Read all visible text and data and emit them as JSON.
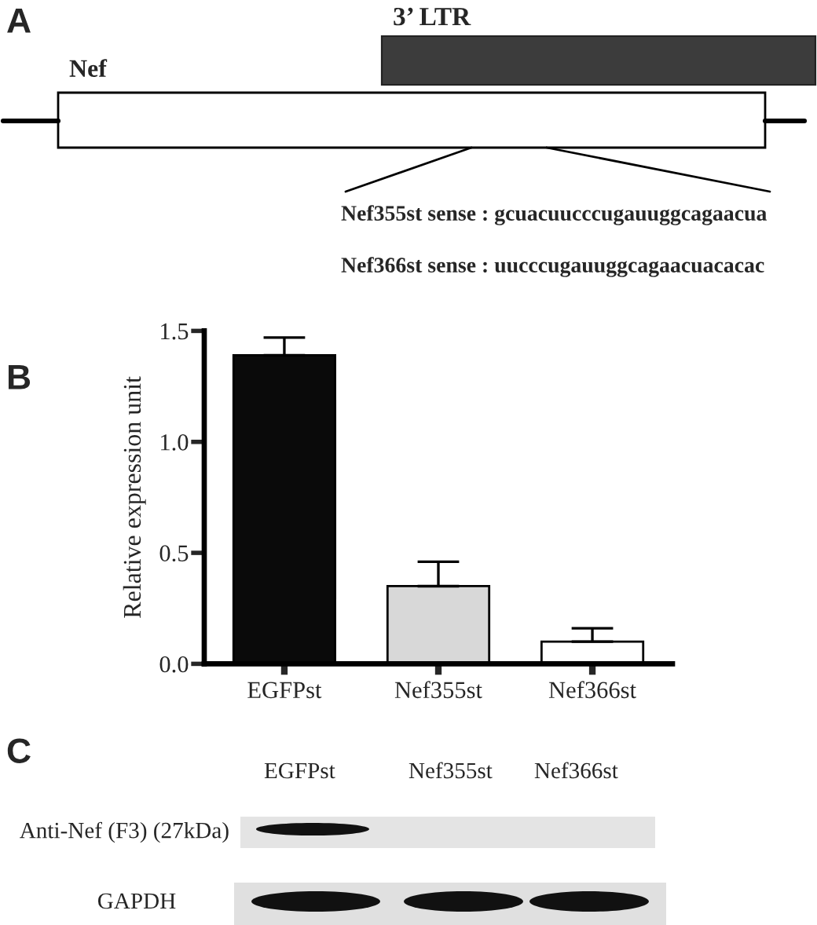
{
  "chart_data": {
    "type": "bar",
    "categories": [
      "EGFPst",
      "Nef355st",
      "Nef366st"
    ],
    "values": [
      1.39,
      0.35,
      0.1
    ],
    "colors": [
      "#0a0a0a",
      "#d8d8d8",
      "#ffffff"
    ],
    "errors": [
      [
        1.39,
        1.47
      ],
      [
        0.35,
        0.46
      ],
      [
        0.1,
        0.16
      ]
    ],
    "ylabel": "Relative expression unit",
    "ylim": [
      0,
      1.5
    ],
    "yticks": [
      {
        "value": 0,
        "label": "0.0"
      },
      {
        "value": 0.5,
        "label": "0.5"
      },
      {
        "value": 1,
        "label": "1.0"
      },
      {
        "value": 1.5,
        "label": "1.5"
      }
    ],
    "annotations": [
      "A",
      "3’ LTR",
      "Nef",
      "Nef355st sense : gcuacuucccugauuggcagaacua",
      "Nef366st sense : uucccugauuggcagaacuacacac",
      "B",
      "C",
      "EGFPst",
      "Nef355st",
      "Nef366st",
      "Anti-Nef (F3) (27kDa)",
      "GAPDH"
    ]
  }
}
